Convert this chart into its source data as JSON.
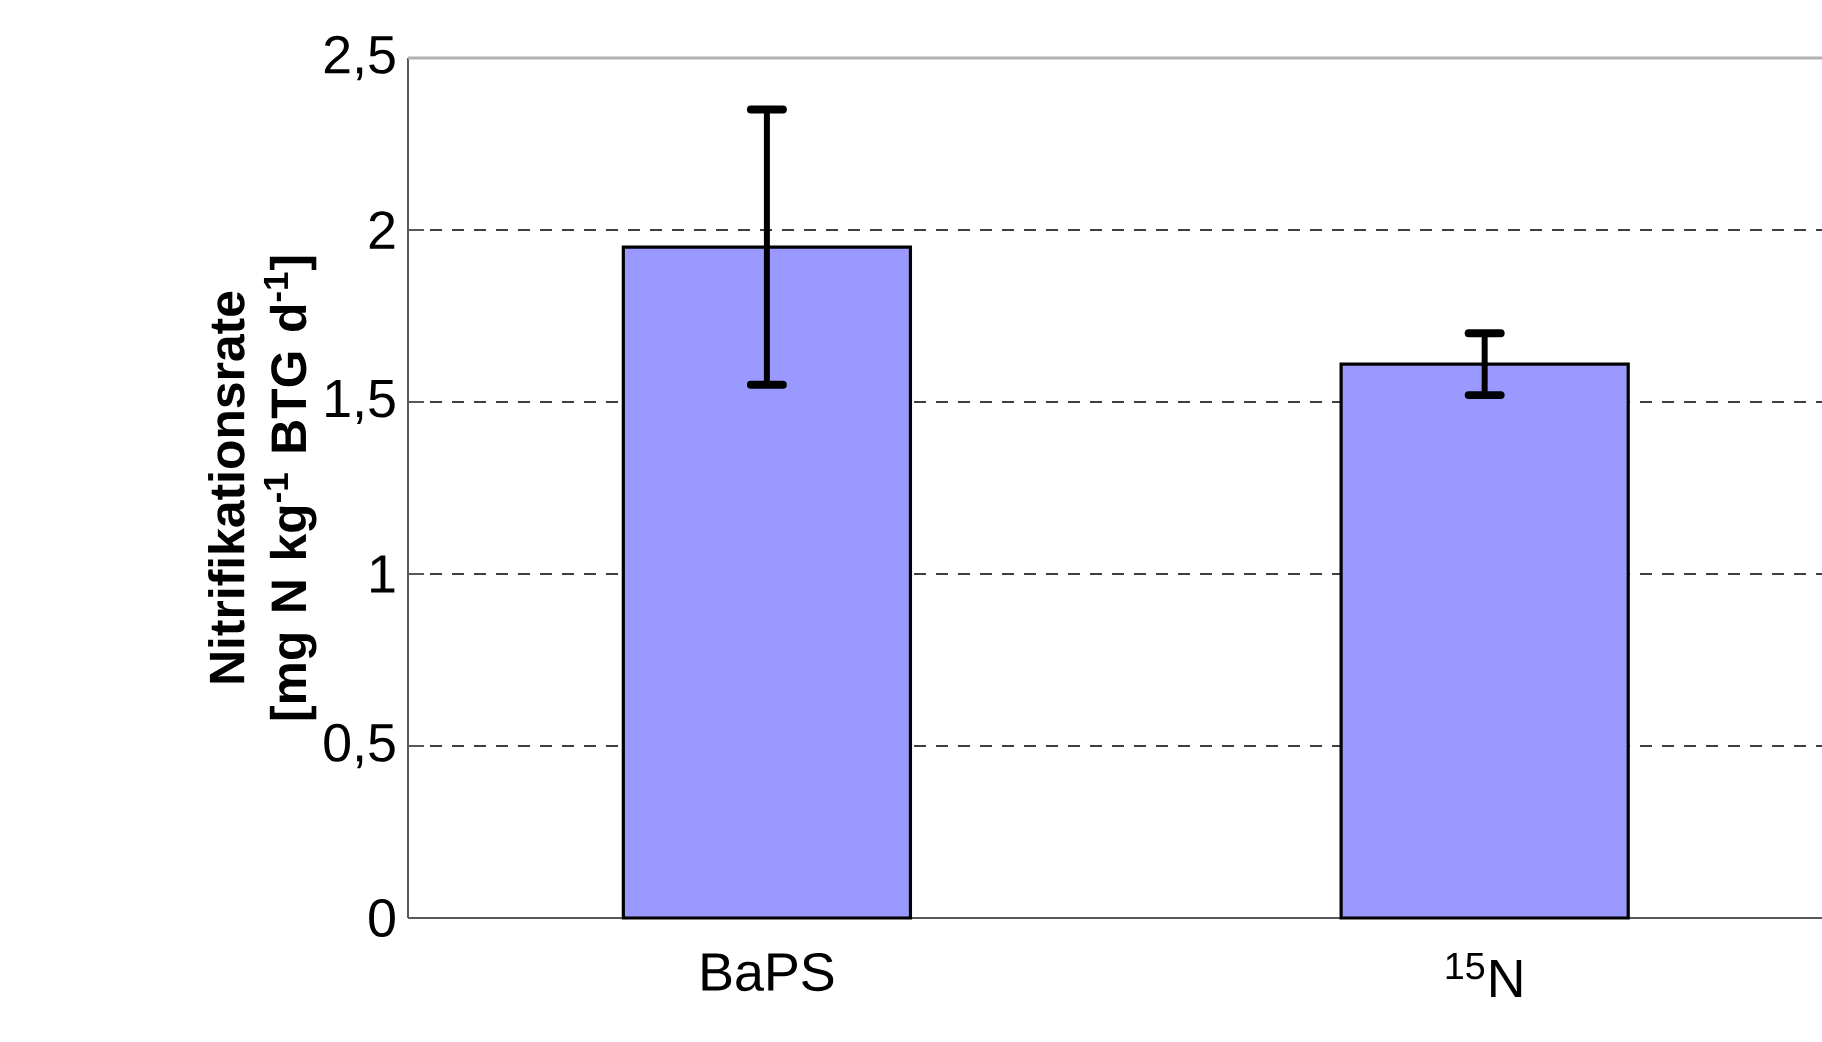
{
  "chart_data": {
    "type": "bar",
    "ylabel": "Nitrifikationsrate [mg N kg$^{-1}$ BTG d$^{-1}$]",
    "categories": [
      "BaPS",
      "$^{15}$N"
    ],
    "values": [
      1.95,
      1.61
    ],
    "errors": [
      0.4,
      0.09
    ],
    "color": "#9999ff",
    "ylim": [
      0,
      2.5
    ],
    "yticks": [
      0,
      {
        "value": 0.5,
        "label": "0,5"
      },
      1,
      {
        "value": 1.5,
        "label": "1,5"
      },
      2,
      {
        "value": 2.5,
        "label": "2,5"
      }
    ],
    "grid": "y"
  }
}
